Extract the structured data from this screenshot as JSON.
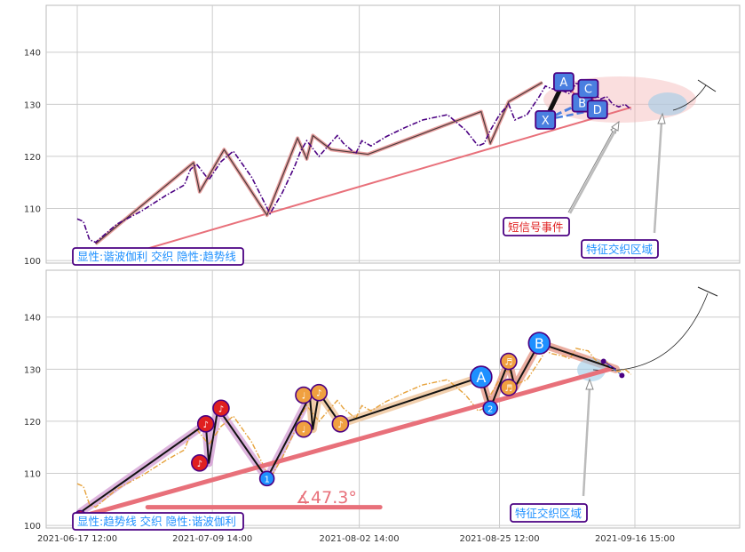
{
  "chart_data": [
    {
      "type": "line",
      "panel": "top",
      "xlabel": "",
      "ylabel": "",
      "ylim": [
        99.5,
        149
      ],
      "yticks": [
        100,
        110,
        120,
        130,
        140
      ],
      "grid": true,
      "series": [
        {
          "role": "price",
          "color": "#4b0082",
          "style": "dash-dot",
          "x": [
            "2021-06-17 12:00",
            "2021-06-18 12:00",
            "2021-06-19 12:00",
            "2021-06-20 12:00",
            "2021-06-24 00:00",
            "2021-06-28 00:00",
            "2021-07-02 00:00",
            "2021-07-05 00:00",
            "2021-07-06 00:00",
            "2021-07-07 00:00",
            "2021-07-09 00:00",
            "2021-07-11 00:00",
            "2021-07-13 00:00",
            "2021-07-16 00:00",
            "2021-07-19 00:00",
            "2021-07-21 00:00",
            "2021-07-23 00:00",
            "2021-07-24 00:00",
            "2021-07-25 00:00",
            "2021-07-27 00:00",
            "2021-07-30 00:00",
            "2021-07-31 00:00",
            "2021-08-02 00:00",
            "2021-08-03 00:00",
            "2021-08-04 12:00",
            "2021-08-07 00:00",
            "2021-08-10 00:00",
            "2021-08-13 00:00",
            "2021-08-17 00:00",
            "2021-08-20 00:00",
            "2021-08-22 00:00",
            "2021-08-23 00:00",
            "2021-08-24 00:00",
            "2021-08-25 12:00",
            "2021-08-27 00:00",
            "2021-08-28 00:00",
            "2021-08-30 00:00",
            "2021-09-01 00:00",
            "2021-09-02 00:00",
            "2021-09-03 00:00",
            "2021-09-05 00:00",
            "2021-09-06 00:00",
            "2021-09-07 00:00",
            "2021-09-09 00:00",
            "2021-09-10 00:00",
            "2021-09-11 00:00",
            "2021-09-12 00:00",
            "2021-09-13 00:00",
            "2021-09-14 00:00",
            "2021-09-15 00:00",
            "2021-09-16 00:00"
          ],
          "y": [
            108,
            107.5,
            104,
            103.5,
            107,
            109.5,
            112.5,
            114.5,
            117.5,
            118.5,
            115.5,
            119,
            121,
            116,
            109,
            113,
            118,
            121,
            123,
            120,
            124,
            122.5,
            120.5,
            123,
            122,
            123.8,
            125.5,
            127,
            128,
            125,
            122,
            122.5,
            125,
            128,
            130,
            127,
            128,
            131.5,
            133.5,
            133,
            132.5,
            132,
            134,
            133.5,
            132,
            131,
            131.5,
            130,
            129.5,
            130,
            129
          ]
        },
        {
          "role": "harmonic-zigzag",
          "color": "#e8a0a0",
          "x": [
            "2021-06-20 12:00",
            "2021-07-06 12:00",
            "2021-07-07 12:00",
            "2021-07-11 12:00",
            "2021-07-18 12:00",
            "2021-07-23 12:00",
            "2021-07-25 00:00",
            "2021-07-26 00:00",
            "2021-07-29 00:00",
            "2021-08-04 00:00",
            "2021-08-22 12:00",
            "2021-08-24 00:00",
            "2021-08-27 00:00",
            "2021-09-01 12:00"
          ],
          "y": [
            103.2,
            118.8,
            113.2,
            121.3,
            108.7,
            123.5,
            119.5,
            124,
            121.3,
            120.4,
            128.6,
            122.5,
            130.5,
            134.2
          ]
        },
        {
          "role": "trend-line",
          "color": "#e8707a",
          "x": [
            "2021-06-29 00:00",
            "2021-09-16 00:00"
          ],
          "y": [
            102.3,
            129.4
          ]
        },
        {
          "role": "harmonic-XABCD",
          "color": "#1e90ff",
          "points": [
            {
              "label": "X",
              "x": "2021-09-02 00:00",
              "y": 127.0
            },
            {
              "label": "A",
              "x": "2021-09-05 00:00",
              "y": 134.3
            },
            {
              "label": "B",
              "x": "2021-09-08 00:00",
              "y": 130.3
            },
            {
              "label": "C",
              "x": "2021-09-09 00:00",
              "y": 133.0
            },
            {
              "label": "D",
              "x": "2021-09-10 12:00",
              "y": 129.0
            }
          ]
        }
      ],
      "annotations": [
        {
          "text": "显性:谐波伽利 交织 隐性:趋势线",
          "kind": "legend-box"
        },
        {
          "text": "短信号事件",
          "kind": "callout"
        },
        {
          "text": "特征交织区域",
          "kind": "callout"
        }
      ]
    },
    {
      "type": "line",
      "panel": "bottom",
      "xlabel": "",
      "ylabel": "",
      "ylim": [
        99.5,
        149
      ],
      "yticks": [
        100,
        110,
        120,
        130,
        140
      ],
      "xticks": [
        "2021-06-17 12:00",
        "2021-07-09 14:00",
        "2021-08-02 14:00",
        "2021-08-25 12:00",
        "2021-09-16 15:00"
      ],
      "grid": true,
      "series": [
        {
          "role": "price",
          "color": "#e6a23c",
          "style": "dash-dot",
          "x": [
            "2021-06-17 12:00",
            "2021-06-18 12:00",
            "2021-06-19 12:00",
            "2021-06-20 12:00",
            "2021-06-24 00:00",
            "2021-06-28 00:00",
            "2021-07-02 00:00",
            "2021-07-05 00:00",
            "2021-07-06 00:00",
            "2021-07-07 00:00",
            "2021-07-09 00:00",
            "2021-07-11 00:00",
            "2021-07-13 00:00",
            "2021-07-16 00:00",
            "2021-07-19 00:00",
            "2021-07-21 00:00",
            "2021-07-23 00:00",
            "2021-07-24 00:00",
            "2021-07-25 00:00",
            "2021-07-27 00:00",
            "2021-07-30 00:00",
            "2021-07-31 00:00",
            "2021-08-02 00:00",
            "2021-08-03 00:00",
            "2021-08-04 12:00",
            "2021-08-07 00:00",
            "2021-08-10 00:00",
            "2021-08-13 00:00",
            "2021-08-17 00:00",
            "2021-08-20 00:00",
            "2021-08-22 00:00",
            "2021-08-23 00:00",
            "2021-08-24 00:00",
            "2021-08-25 12:00",
            "2021-08-27 00:00",
            "2021-08-28 00:00",
            "2021-08-30 00:00",
            "2021-09-01 00:00",
            "2021-09-02 00:00",
            "2021-09-03 00:00",
            "2021-09-05 00:00",
            "2021-09-06 00:00",
            "2021-09-07 00:00",
            "2021-09-09 00:00",
            "2021-09-10 00:00",
            "2021-09-11 00:00",
            "2021-09-12 00:00",
            "2021-09-13 00:00",
            "2021-09-14 00:00",
            "2021-09-15 00:00",
            "2021-09-16 00:00"
          ],
          "y": [
            108,
            107.5,
            104,
            103.5,
            107,
            109.5,
            112.5,
            114.5,
            117.5,
            118.5,
            115.5,
            119,
            121,
            116,
            109,
            113,
            118,
            121,
            123,
            120,
            124,
            122.5,
            120.5,
            123,
            122,
            123.8,
            125.5,
            127,
            128,
            125,
            122,
            122.5,
            125,
            128,
            130,
            127,
            128,
            131.5,
            133.5,
            133,
            132.5,
            132,
            134,
            133.5,
            132,
            131,
            131.5,
            130,
            129.5,
            130,
            129
          ]
        },
        {
          "role": "zigzag",
          "color": "#000000",
          "x": [
            "2021-06-18 00:00",
            "2021-07-08 12:00",
            "2021-07-09 00:00",
            "2021-07-10 12:00",
            "2021-07-18 12:00",
            "2021-07-25 12:00",
            "2021-07-26 00:00",
            "2021-07-27 00:00",
            "2021-07-30 12:00",
            "2021-08-22 12:00",
            "2021-08-24 00:00",
            "2021-08-27 00:00",
            "2021-08-28 00:00",
            "2021-09-01 00:00",
            "2021-09-13 12:00"
          ],
          "y": [
            102.5,
            119.5,
            112,
            122.5,
            109,
            124.8,
            118.5,
            125.5,
            119.5,
            128.5,
            122.5,
            131.5,
            126.5,
            135,
            130
          ]
        },
        {
          "role": "trend-line",
          "color": "#e8707a",
          "x": [
            "2021-06-17 12:00",
            "2021-09-12 12:00"
          ],
          "y": [
            101.5,
            130
          ]
        },
        {
          "role": "angle-baseline",
          "color": "#e8707a",
          "x": [
            "2021-06-29 00:00",
            "2021-08-06 00:00"
          ],
          "y": [
            103.5,
            103.5
          ]
        }
      ],
      "markers": [
        {
          "label": "♪",
          "x": "2021-07-08 12:00",
          "y": 119.5,
          "color": "#e02020"
        },
        {
          "label": "♪",
          "x": "2021-07-07 12:00",
          "y": 112,
          "color": "#e02020"
        },
        {
          "label": "♪",
          "x": "2021-07-11 00:00",
          "y": 122.5,
          "color": "#e02020"
        },
        {
          "label": "1",
          "x": "2021-07-18 12:00",
          "y": 109,
          "color": "#1e90ff"
        },
        {
          "label": "♩",
          "x": "2021-07-24 12:00",
          "y": 125,
          "color": "#f0a040"
        },
        {
          "label": "♩",
          "x": "2021-07-24 12:00",
          "y": 118.5,
          "color": "#f0a040"
        },
        {
          "label": "♪",
          "x": "2021-07-27 00:00",
          "y": 125.5,
          "color": "#f0a040"
        },
        {
          "label": "♪",
          "x": "2021-07-30 12:00",
          "y": 119.5,
          "color": "#f0a040"
        },
        {
          "label": "A",
          "x": "2021-08-22 12:00",
          "y": 128.5,
          "color": "#1e90ff"
        },
        {
          "label": "2",
          "x": "2021-08-24 00:00",
          "y": 122.5,
          "color": "#1e90ff"
        },
        {
          "label": "♬",
          "x": "2021-08-27 00:00",
          "y": 131.5,
          "color": "#f0a040"
        },
        {
          "label": "♬",
          "x": "2021-08-27 00:00",
          "y": 126.5,
          "color": "#f0a040"
        },
        {
          "label": "B",
          "x": "2021-09-01 00:00",
          "y": 135,
          "color": "#1e90ff"
        }
      ],
      "annotations": [
        {
          "text": "∡47.3°",
          "kind": "angle-label"
        },
        {
          "text": "显性:趋势线 交织 隐性:谐波伽利",
          "kind": "legend-box"
        },
        {
          "text": "特征交织区域",
          "kind": "callout"
        }
      ]
    }
  ]
}
